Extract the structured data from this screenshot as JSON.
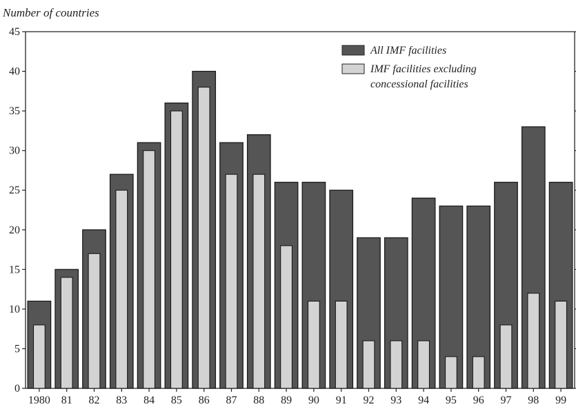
{
  "chart_data": {
    "type": "bar",
    "title": "",
    "ylabel": "Number of countries",
    "xlabel": "",
    "ylim": [
      0,
      45
    ],
    "yticks": [
      0,
      5,
      10,
      15,
      20,
      25,
      30,
      35,
      40,
      45
    ],
    "categories": [
      "1980",
      "81",
      "82",
      "83",
      "84",
      "85",
      "86",
      "87",
      "88",
      "89",
      "90",
      "91",
      "92",
      "93",
      "94",
      "95",
      "96",
      "97",
      "98",
      "99"
    ],
    "series": [
      {
        "name": "All IMF facilities",
        "color": "#555555",
        "values": [
          11,
          15,
          20,
          27,
          31,
          36,
          40,
          31,
          32,
          26,
          26,
          25,
          19,
          19,
          24,
          23,
          23,
          26,
          33,
          26
        ]
      },
      {
        "name": "IMF facilities excluding concessional facilities",
        "color": "#d3d3d3",
        "values": [
          8,
          14,
          17,
          25,
          30,
          35,
          38,
          27,
          27,
          18,
          11,
          11,
          6,
          6,
          6,
          4,
          4,
          8,
          12,
          11
        ]
      }
    ],
    "legend": {
      "position": "top-right",
      "entries": [
        {
          "lines": [
            "All IMF facilities"
          ]
        },
        {
          "lines": [
            "IMF facilities excluding",
            "concessional facilities"
          ]
        }
      ]
    },
    "grid": false
  }
}
